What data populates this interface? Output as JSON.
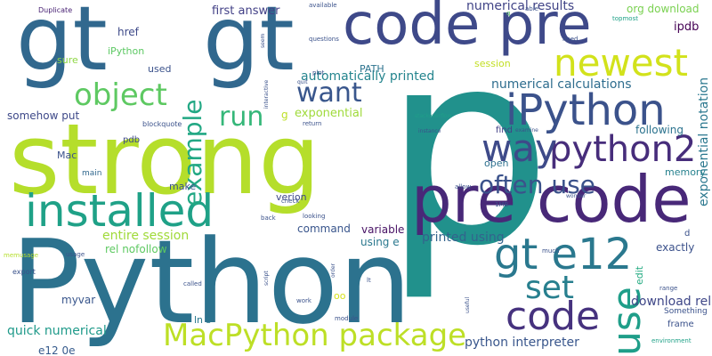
{
  "words": [
    {
      "text": "p",
      "color": "#21918c"
    },
    {
      "text": "Python",
      "color": "#2c728e"
    },
    {
      "text": "strong",
      "color": "#b5de2b"
    },
    {
      "text": "gt",
      "color": "#31688e"
    },
    {
      "text": "gt",
      "color": "#31688e"
    },
    {
      "text": "pre code",
      "color": "#482878"
    },
    {
      "text": "code pre",
      "color": "#3e4989"
    },
    {
      "text": "installed",
      "color": "#1fa187"
    },
    {
      "text": "MacPython package",
      "color": "#bddf26"
    },
    {
      "text": "newest",
      "color": "#d2e21b"
    },
    {
      "text": "iPython",
      "color": "#3b528b"
    },
    {
      "text": "python2",
      "color": "#472d7b"
    },
    {
      "text": "code",
      "color": "#46327e"
    },
    {
      "text": "gt e12",
      "color": "#2a788e"
    },
    {
      "text": "use",
      "color": "#1f9e89"
    },
    {
      "text": "way",
      "color": "#3e4a89"
    },
    {
      "text": "set",
      "color": "#277f8e"
    },
    {
      "text": "object",
      "color": "#5ec962"
    },
    {
      "text": "want",
      "color": "#39568c"
    },
    {
      "text": "example",
      "color": "#22a884"
    },
    {
      "text": "often use",
      "color": "#3b528b"
    },
    {
      "text": "run",
      "color": "#35b779"
    },
    {
      "text": "numerical calculations",
      "color": "#2e6d8e"
    },
    {
      "text": "automatically printed",
      "color": "#25858e"
    },
    {
      "text": "numerical results",
      "color": "#414487"
    },
    {
      "text": "quick numerical",
      "color": "#1f9a8a"
    },
    {
      "text": "python interpreter",
      "color": "#39568c"
    },
    {
      "text": "exponential notation",
      "color": "#2a778e"
    },
    {
      "text": "entire session",
      "color": "#a0da39"
    },
    {
      "text": "printed using",
      "color": "#33638d"
    },
    {
      "text": "download rel",
      "color": "#3f4788"
    },
    {
      "text": "org download",
      "color": "#7ad151"
    },
    {
      "text": "first answer",
      "color": "#424086"
    },
    {
      "text": "ipdb",
      "color": "#440154"
    },
    {
      "text": "exponential",
      "color": "#9fda3a"
    },
    {
      "text": "somehow put",
      "color": "#3e4989"
    },
    {
      "text": "rel nofollow",
      "color": "#5ec962"
    },
    {
      "text": "following",
      "color": "#2c738e"
    },
    {
      "text": "command",
      "color": "#39558c"
    },
    {
      "text": "variable",
      "color": "#471164"
    },
    {
      "text": "using e",
      "color": "#2a788e"
    },
    {
      "text": "myvar",
      "color": "#39568c"
    },
    {
      "text": "e12 0e",
      "color": "#375b8d"
    },
    {
      "text": "exactly",
      "color": "#3b518b"
    },
    {
      "text": "memory",
      "color": "#26818e"
    },
    {
      "text": "make",
      "color": "#3b528b"
    },
    {
      "text": "verion",
      "color": "#3f4889"
    },
    {
      "text": "href",
      "color": "#3e4a89"
    },
    {
      "text": "iPython",
      "color": "#5cc863"
    },
    {
      "text": "sure",
      "color": "#8fd744"
    },
    {
      "text": "used",
      "color": "#3b528b"
    },
    {
      "text": "PATH",
      "color": "#2c738e"
    },
    {
      "text": "session",
      "color": "#c2df23"
    },
    {
      "text": "open",
      "color": "#2d708e"
    },
    {
      "text": "find",
      "color": "#424086"
    },
    {
      "text": "ln s",
      "color": "#2a788e"
    },
    {
      "text": "frame",
      "color": "#3b528b"
    },
    {
      "text": "edit",
      "color": "#25ab82"
    },
    {
      "text": "Mac",
      "color": "#3b528b"
    },
    {
      "text": "pdb",
      "color": "#3e4989"
    },
    {
      "text": "Something",
      "color": "#3b528b"
    },
    {
      "text": "main",
      "color": "#31688e"
    },
    {
      "text": "blockquote",
      "color": "#3b528b"
    },
    {
      "text": "d",
      "color": "#3b528b"
    },
    {
      "text": "g",
      "color": "#bddf26"
    },
    {
      "text": "oo",
      "color": "#d5e21a"
    },
    {
      "text": "Duplicate",
      "color": "#482173"
    },
    {
      "text": "available",
      "color": "#3b528b"
    },
    {
      "text": "q",
      "color": "#5ec962"
    },
    {
      "text": "seem",
      "color": "#3b528b"
    },
    {
      "text": "topmost",
      "color": "#1fa187"
    },
    {
      "text": "questions",
      "color": "#3b528b"
    },
    {
      "text": "need",
      "color": "#3b528b"
    },
    {
      "text": "plot",
      "color": "#3b528b"
    },
    {
      "text": "quit",
      "color": "#3b528b"
    },
    {
      "text": "return",
      "color": "#3b528b"
    },
    {
      "text": "interactive",
      "color": "#3b528b"
    },
    {
      "text": "stackoverflow",
      "color": "#1f9e89"
    },
    {
      "text": "instance",
      "color": "#3b528b"
    },
    {
      "text": "examine",
      "color": "#3b528b"
    },
    {
      "text": "wonder",
      "color": "#3b528b"
    },
    {
      "text": "allow",
      "color": "#3b528b"
    },
    {
      "text": "1MB",
      "color": "#3b528b"
    },
    {
      "text": "check",
      "color": "#3b528b"
    },
    {
      "text": "back",
      "color": "#3b528b"
    },
    {
      "text": "looking",
      "color": "#3b528b"
    },
    {
      "text": "able",
      "color": "#3b528b"
    },
    {
      "text": "much",
      "color": "#3b528b"
    },
    {
      "text": "order",
      "color": "#3b528b"
    },
    {
      "text": "lt",
      "color": "#3b528b"
    },
    {
      "text": "range",
      "color": "#3b528b"
    },
    {
      "text": "usage",
      "color": "#3b528b"
    },
    {
      "text": "memusage",
      "color": "#b5de2b"
    },
    {
      "text": "export",
      "color": "#3b528b"
    },
    {
      "text": "called",
      "color": "#3b528b"
    },
    {
      "text": "script",
      "color": "#3b528b"
    },
    {
      "text": "work",
      "color": "#3b528b"
    },
    {
      "text": "module",
      "color": "#3b528b"
    },
    {
      "text": "useful",
      "color": "#3b528b"
    },
    {
      "text": "environment",
      "color": "#1fa187"
    }
  ]
}
